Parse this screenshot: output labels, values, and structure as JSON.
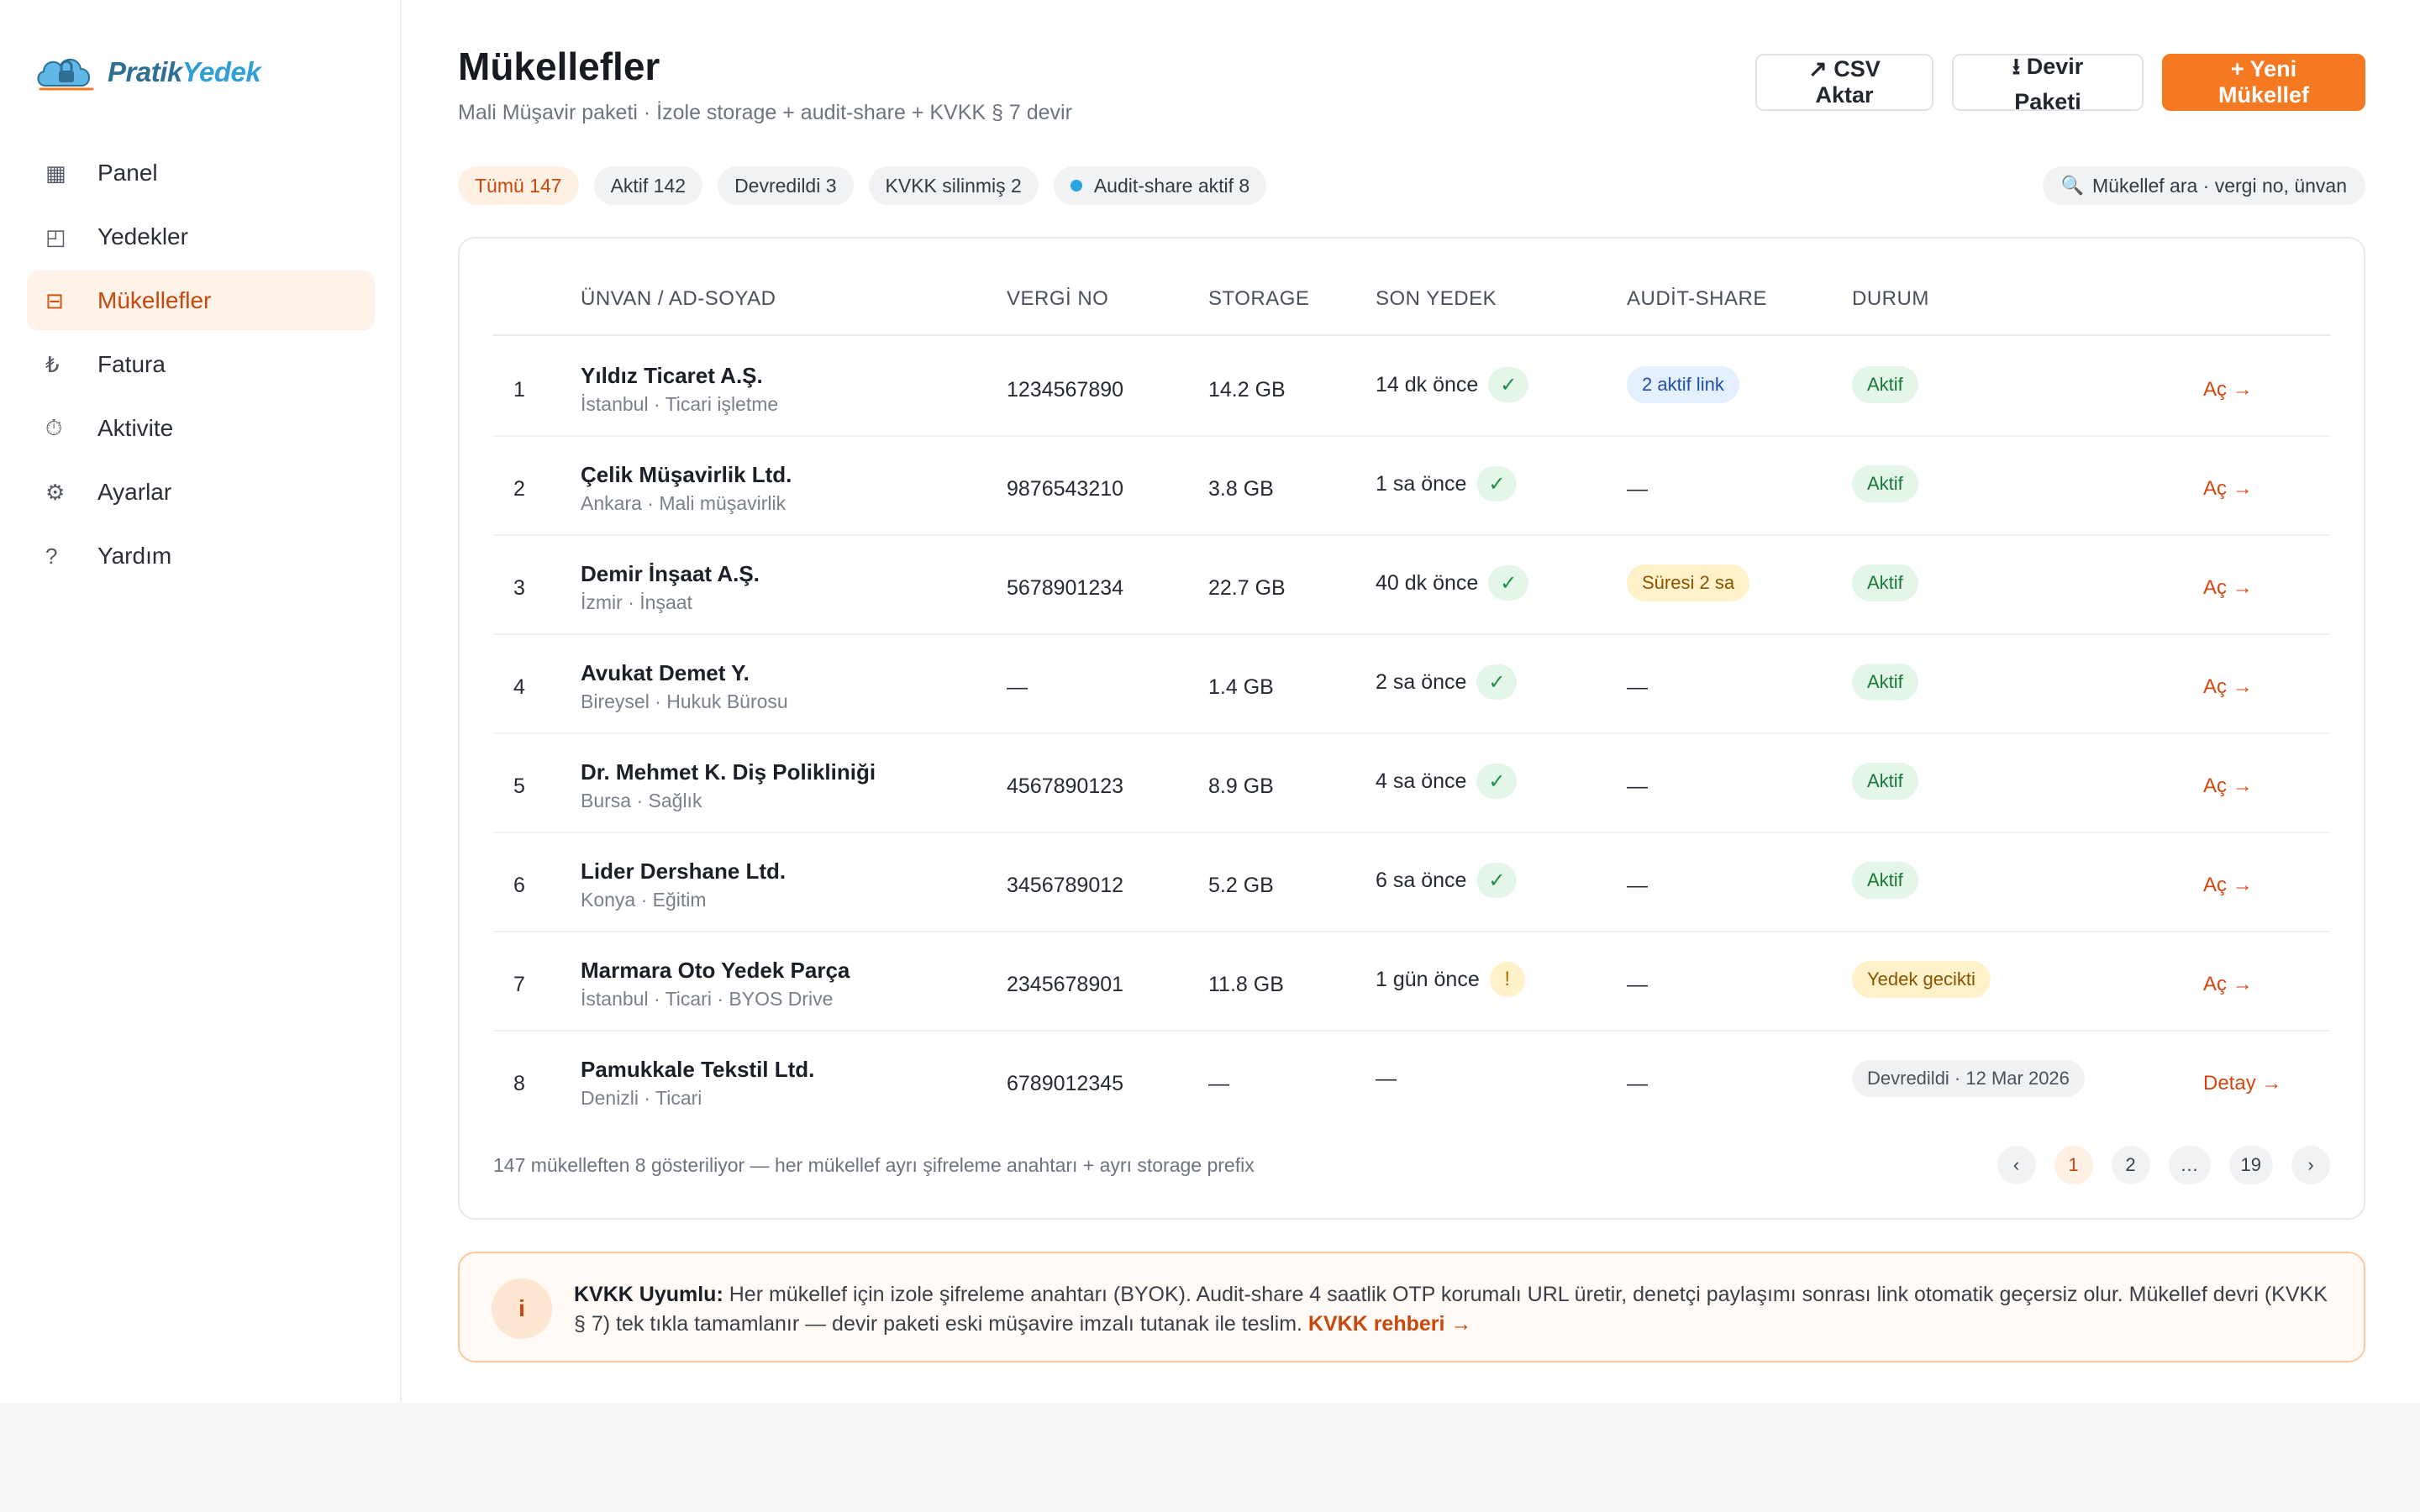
{
  "logo": {
    "part1": "Pratik",
    "part2": "Yedek"
  },
  "sidebar": {
    "items": [
      {
        "label": "Panel",
        "icon": "▦"
      },
      {
        "label": "Yedekler",
        "icon": "◰"
      },
      {
        "label": "Mükellefler",
        "icon": "⊟"
      },
      {
        "label": "Fatura",
        "icon": "₺"
      },
      {
        "label": "Aktivite",
        "icon": "⏱"
      },
      {
        "label": "Ayarlar",
        "icon": "⚙"
      },
      {
        "label": "Yardım",
        "icon": "?"
      }
    ]
  },
  "header": {
    "title": "Mükellefler",
    "subtitle": "Mali Müşavir paketi · İzole storage + audit-share + KVKK § 7 devir"
  },
  "actions": {
    "csv": "↗ CSV Aktar",
    "devir": "⭳ Devir Paketi",
    "new": "+ Yeni Mükellef"
  },
  "filters": {
    "all": "Tümü 147",
    "active": "Aktif 142",
    "transferred": "Devredildi 3",
    "deleted": "KVKK silinmiş 2",
    "audit": "Audit-share aktif 8"
  },
  "search": {
    "placeholder": "Mükellef ara · vergi no, ünvan"
  },
  "table": {
    "headers": {
      "name": "ÜNVAN / AD-SOYAD",
      "vergi": "VERGİ NO",
      "storage": "STORAGE",
      "son": "SON YEDEK",
      "audit": "AUDİT-SHARE",
      "durum": "DURUM"
    },
    "rows": [
      {
        "num": "1",
        "name": "Yıldız Ticaret A.Ş.",
        "sub": "İstanbul · Ticari işletme",
        "vergi": "1234567890",
        "storage": "14.2 GB",
        "son": "14 dk önce",
        "mark": "✓",
        "audit": "2 aktif link",
        "durum": "Aktif",
        "action": "Aç →"
      },
      {
        "num": "2",
        "name": "Çelik Müşavirlik Ltd.",
        "sub": "Ankara · Mali müşavirlik",
        "vergi": "9876543210",
        "storage": "3.8 GB",
        "son": "1 sa önce",
        "mark": "✓",
        "audit": "—",
        "durum": "Aktif",
        "action": "Aç →"
      },
      {
        "num": "3",
        "name": "Demir İnşaat A.Ş.",
        "sub": "İzmir · İnşaat",
        "vergi": "5678901234",
        "storage": "22.7 GB",
        "son": "40 dk önce",
        "mark": "✓",
        "audit": "Süresi 2 sa",
        "durum": "Aktif",
        "action": "Aç →"
      },
      {
        "num": "4",
        "name": "Avukat Demet Y.",
        "sub": "Bireysel · Hukuk Bürosu",
        "vergi": "—",
        "storage": "1.4 GB",
        "son": "2 sa önce",
        "mark": "✓",
        "audit": "—",
        "durum": "Aktif",
        "action": "Aç →"
      },
      {
        "num": "5",
        "name": "Dr. Mehmet K. Diş Polikliniği",
        "sub": "Bursa · Sağlık",
        "vergi": "4567890123",
        "storage": "8.9 GB",
        "son": "4 sa önce",
        "mark": "✓",
        "audit": "—",
        "durum": "Aktif",
        "action": "Aç →"
      },
      {
        "num": "6",
        "name": "Lider Dershane Ltd.",
        "sub": "Konya · Eğitim",
        "vergi": "3456789012",
        "storage": "5.2 GB",
        "son": "6 sa önce",
        "mark": "✓",
        "audit": "—",
        "durum": "Aktif",
        "action": "Aç →"
      },
      {
        "num": "7",
        "name": "Marmara Oto Yedek Parça",
        "sub": "İstanbul · Ticari · BYOS Drive",
        "vergi": "2345678901",
        "storage": "11.8 GB",
        "son": "1 gün önce",
        "mark": "!",
        "audit": "—",
        "durum": "Yedek gecikti",
        "action": "Aç →"
      },
      {
        "num": "8",
        "name": "Pamukkale Tekstil Ltd.",
        "sub": "Denizli · Ticari",
        "vergi": "6789012345",
        "storage": "—",
        "son": "—",
        "mark": "",
        "audit": "—",
        "durum": "Devredildi · 12 Mar 2026",
        "action": "Detay →"
      }
    ],
    "footer": "147 mükelleften 8 gösteriliyor — her mükellef ayrı şifreleme anahtarı + ayrı storage prefix"
  },
  "pager": {
    "prev": "‹",
    "p1": "1",
    "p2": "2",
    "dots": "…",
    "last": "19",
    "next": "›"
  },
  "notice": {
    "badge": "i",
    "strong": "KVKK Uyumlu:",
    "text": " Her mükellef için izole şifreleme anahtarı (BYOK). Audit-share 4 saatlik OTP korumalı URL üretir, denetçi paylaşımı sonrası link otomatik geçersiz olur. Mükellef devri (KVKK § 7) tek tıkla tamamlanır — devir paketi eski müşavire imzalı tutanak ile teslim. ",
    "link": "KVKK rehberi →"
  }
}
